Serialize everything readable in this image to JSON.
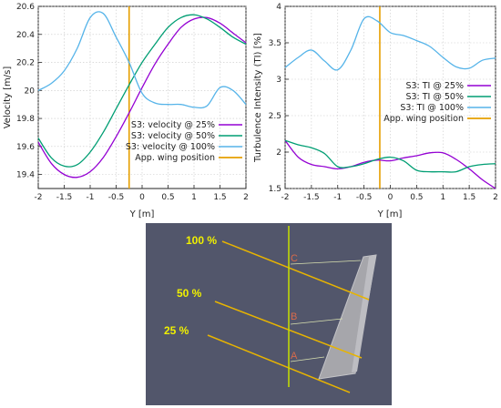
{
  "colors": {
    "s25": "#9400d3",
    "s50": "#009e73",
    "s100": "#56b4e9",
    "wing": "#e69f00",
    "scene_bg": "#52566b",
    "scene_line": "#e8c000",
    "vertical_line": "#c8e000",
    "label_yellow": "#f0f000",
    "point_label": "#d86a4c"
  },
  "chart_data": [
    {
      "type": "line",
      "xlabel": "Y [m]",
      "ylabel": "Velocity [m/s]",
      "xlim": [
        -2,
        2
      ],
      "ylim": [
        19.3,
        20.6
      ],
      "xticks": [
        "-2",
        "-1.5",
        "-1",
        "-0.5",
        "0",
        "0.5",
        "1",
        "1.5",
        "2"
      ],
      "yticks": [
        "19.4",
        "19.6",
        "19.8",
        "20",
        "20.2",
        "20.4",
        "20.6"
      ],
      "grid": true,
      "legend_position": "center-right",
      "wing_position_x": -0.25,
      "series": [
        {
          "name": "S3: velocity @ 25%",
          "color_key": "s25",
          "x": [
            -2,
            -1.75,
            -1.5,
            -1.25,
            -1,
            -0.75,
            -0.5,
            -0.25,
            0,
            0.25,
            0.5,
            0.75,
            1,
            1.25,
            1.5,
            1.75,
            2
          ],
          "y": [
            19.63,
            19.48,
            19.4,
            19.38,
            19.42,
            19.52,
            19.67,
            19.84,
            20.02,
            20.19,
            20.33,
            20.45,
            20.51,
            20.52,
            20.48,
            20.41,
            20.34
          ]
        },
        {
          "name": "S3: velocity @ 50%",
          "color_key": "s50",
          "x": [
            -2,
            -1.75,
            -1.5,
            -1.25,
            -1,
            -0.75,
            -0.5,
            -0.25,
            0,
            0.25,
            0.5,
            0.75,
            1,
            1.25,
            1.5,
            1.75,
            2
          ],
          "y": [
            19.66,
            19.52,
            19.46,
            19.47,
            19.56,
            19.7,
            19.87,
            20.04,
            20.2,
            20.33,
            20.45,
            20.52,
            20.54,
            20.51,
            20.45,
            20.38,
            20.33
          ]
        },
        {
          "name": "S3: velocity @ 100%",
          "color_key": "s100",
          "x": [
            -2,
            -1.75,
            -1.5,
            -1.25,
            -1,
            -0.75,
            -0.5,
            -0.25,
            0,
            0.25,
            0.5,
            0.75,
            1,
            1.25,
            1.5,
            1.75,
            2
          ],
          "y": [
            20.0,
            20.05,
            20.14,
            20.3,
            20.52,
            20.55,
            20.38,
            20.2,
            19.98,
            19.91,
            19.9,
            19.9,
            19.88,
            19.89,
            20.02,
            20.0,
            19.9
          ]
        }
      ],
      "wing_legend": "App. wing position"
    },
    {
      "type": "line",
      "xlabel": "Y [m]",
      "ylabel": "Turbulence Intensity (TI) [%]",
      "xlim": [
        -2,
        2
      ],
      "ylim": [
        1.5,
        4
      ],
      "xticks": [
        "-2",
        "-1.5",
        "-1",
        "-0.5",
        "0",
        "0.5",
        "1",
        "1.5",
        "2"
      ],
      "yticks": [
        "1.5",
        "2",
        "2.5",
        "3",
        "3.5",
        "4"
      ],
      "grid": true,
      "legend_position": "center-right",
      "wing_position_x": -0.2,
      "series": [
        {
          "name": "S3: TI @ 25%",
          "color_key": "s25",
          "x": [
            -2,
            -1.75,
            -1.5,
            -1.25,
            -1,
            -0.75,
            -0.5,
            -0.25,
            0,
            0.25,
            0.5,
            0.75,
            1,
            1.25,
            1.5,
            1.75,
            2
          ],
          "y": [
            2.16,
            1.93,
            1.83,
            1.8,
            1.77,
            1.8,
            1.86,
            1.89,
            1.88,
            1.92,
            1.95,
            1.99,
            1.99,
            1.9,
            1.77,
            1.62,
            1.5
          ]
        },
        {
          "name": "S3: TI @ 50%",
          "color_key": "s50",
          "x": [
            -2,
            -1.75,
            -1.5,
            -1.25,
            -1,
            -0.75,
            -0.5,
            -0.25,
            0,
            0.25,
            0.5,
            0.75,
            1,
            1.25,
            1.5,
            1.75,
            2
          ],
          "y": [
            2.16,
            2.1,
            2.06,
            1.98,
            1.8,
            1.8,
            1.84,
            1.9,
            1.93,
            1.88,
            1.75,
            1.73,
            1.73,
            1.73,
            1.8,
            1.83,
            1.84
          ]
        },
        {
          "name": "S3: TI @ 100%",
          "color_key": "s100",
          "x": [
            -2,
            -1.75,
            -1.5,
            -1.25,
            -1,
            -0.75,
            -0.5,
            -0.25,
            0,
            0.25,
            0.5,
            0.75,
            1,
            1.25,
            1.5,
            1.75,
            2
          ],
          "y": [
            3.16,
            3.3,
            3.4,
            3.25,
            3.13,
            3.4,
            3.83,
            3.8,
            3.64,
            3.6,
            3.53,
            3.45,
            3.3,
            3.17,
            3.15,
            3.26,
            3.29
          ]
        }
      ],
      "wing_legend": "App. wing position"
    }
  ],
  "scene": {
    "labels": [
      "100 %",
      "50 %",
      "25 %"
    ],
    "points": [
      "C",
      "B",
      "A"
    ]
  }
}
